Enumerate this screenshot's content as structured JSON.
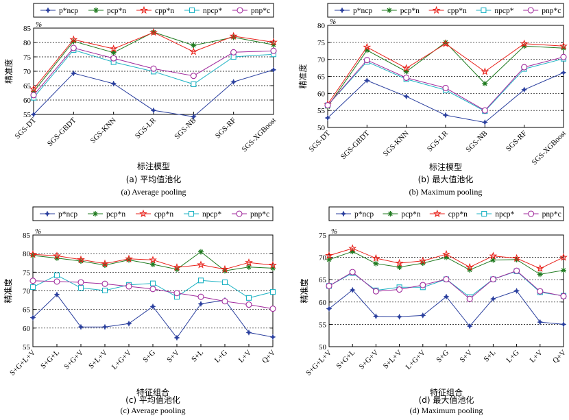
{
  "legend_labels": [
    "p*ncp",
    "pcp*n",
    "cpp*n",
    "npcp*",
    "pnp*c"
  ],
  "series_colors": [
    "#2a3f9e",
    "#1f7a1f",
    "#e8221b",
    "#1fb3c4",
    "#a02a9c"
  ],
  "chart_data": [
    {
      "type": "line",
      "y_unit": "%",
      "ylabel": "精准度",
      "xlabel": "标注模型",
      "caption_cn": "(a) 平均值池化",
      "caption_en": "(a) Average pooling",
      "categories": [
        "SGS-DT",
        "SGS-GBDT",
        "SGS-KNN",
        "SGS-LR",
        "SGS-NB",
        "SGS-RF",
        "SGS-XGBoost"
      ],
      "ylim": [
        55,
        85
      ],
      "yticks": [
        55,
        60,
        65,
        70,
        75,
        80,
        85
      ],
      "grid": true,
      "legend": "top",
      "series": [
        {
          "name": "p*ncp",
          "values": [
            55.0,
            69.3,
            65.7,
            56.4,
            54.2,
            66.3,
            70.5
          ]
        },
        {
          "name": "pcp*n",
          "values": [
            62.9,
            80.4,
            76.5,
            83.6,
            79.0,
            81.8,
            79.2
          ]
        },
        {
          "name": "cpp*n",
          "values": [
            63.8,
            81.0,
            77.8,
            83.5,
            76.8,
            82.2,
            80.1
          ]
        },
        {
          "name": "npcp*",
          "values": [
            60.8,
            77.4,
            73.2,
            69.9,
            65.5,
            75.0,
            75.9
          ]
        },
        {
          "name": "pnp*c",
          "values": [
            61.7,
            78.1,
            74.5,
            70.9,
            68.4,
            76.6,
            77.1
          ]
        }
      ]
    },
    {
      "type": "line",
      "y_unit": "%",
      "ylabel": "精准度",
      "xlabel": "标注模型",
      "caption_cn": "(b) 最大值池化",
      "caption_en": "(b) Maximum pooling",
      "categories": [
        "SGS-DT",
        "SGS-GBDT",
        "SGS-KNN",
        "SGS-LR",
        "SGS-NB",
        "SGS-RF",
        "SGS-XGBoost"
      ],
      "ylim": [
        50,
        80
      ],
      "yticks": [
        50,
        55,
        60,
        65,
        70,
        75,
        80
      ],
      "grid": true,
      "legend": "top",
      "series": [
        {
          "name": "p*ncp",
          "values": [
            52.8,
            63.8,
            59.1,
            53.6,
            51.5,
            61.1,
            66.1
          ]
        },
        {
          "name": "pcp*n",
          "values": [
            56.1,
            72.7,
            66.4,
            75.0,
            62.9,
            73.9,
            73.3
          ]
        },
        {
          "name": "cpp*n",
          "values": [
            56.8,
            73.6,
            67.4,
            74.6,
            66.4,
            74.6,
            73.9
          ]
        },
        {
          "name": "npcp*",
          "values": [
            56.5,
            69.3,
            64.2,
            61.0,
            54.8,
            67.2,
            70.2
          ]
        },
        {
          "name": "pnp*c",
          "values": [
            56.5,
            69.8,
            64.6,
            61.6,
            55.0,
            67.7,
            70.7
          ]
        }
      ]
    },
    {
      "type": "line",
      "y_unit": "%",
      "ylabel": "精准度",
      "xlabel": "特征组合",
      "caption_cn": "(c) 平均值池化",
      "caption_en": "(c) Average pooling",
      "categories": [
        "S+G+L+V",
        "S+G+L",
        "S+G+V",
        "S+L+V",
        "L+G+V",
        "S+G",
        "S+V",
        "S+L",
        "L+G",
        "L+V",
        "Q+V"
      ],
      "ylim": [
        55,
        85
      ],
      "yticks": [
        55,
        60,
        65,
        70,
        75,
        80,
        85
      ],
      "grid": true,
      "legend": "top",
      "series": [
        {
          "name": "p*ncp",
          "values": [
            62.8,
            69.0,
            60.3,
            60.3,
            61.2,
            65.8,
            57.4,
            66.5,
            67.5,
            58.8,
            57.6
          ]
        },
        {
          "name": "pcp*n",
          "values": [
            79.5,
            78.8,
            78.0,
            76.9,
            78.3,
            77.1,
            75.8,
            80.5,
            75.4,
            76.4,
            76.1
          ]
        },
        {
          "name": "cpp*n",
          "values": [
            79.8,
            79.4,
            78.4,
            77.3,
            78.6,
            78.3,
            76.3,
            77.0,
            75.8,
            77.6,
            76.9
          ]
        },
        {
          "name": "npcp*",
          "values": [
            71.0,
            74.2,
            70.8,
            70.1,
            71.6,
            72.0,
            68.4,
            72.8,
            72.3,
            68.1,
            69.7
          ]
        },
        {
          "name": "pnp*c",
          "values": [
            72.7,
            72.5,
            72.3,
            71.9,
            71.2,
            70.5,
            69.4,
            68.4,
            67.2,
            66.3,
            65.2
          ]
        }
      ]
    },
    {
      "type": "line",
      "y_unit": "%",
      "ylabel": "精准度",
      "xlabel": "特征组合",
      "caption_cn": "(d) 最大值池化",
      "caption_en": "(d) Maximum pooling",
      "categories": [
        "S+G+L+V",
        "S+G+L",
        "S+G+V",
        "S+L+V",
        "L+G+V",
        "S+G",
        "S+V",
        "S+L",
        "L+G",
        "L+V",
        "Q+V"
      ],
      "ylim": [
        50,
        75
      ],
      "yticks": [
        50,
        55,
        60,
        65,
        70,
        75
      ],
      "grid": true,
      "legend": "top",
      "series": [
        {
          "name": "p*ncp",
          "values": [
            58.5,
            62.7,
            56.8,
            56.7,
            57.0,
            61.2,
            54.6,
            60.7,
            62.5,
            55.5,
            55.0
          ]
        },
        {
          "name": "pcp*n",
          "values": [
            69.5,
            71.3,
            68.6,
            67.8,
            68.7,
            70.0,
            67.2,
            69.4,
            69.5,
            66.2,
            67.1
          ]
        },
        {
          "name": "cpp*n",
          "values": [
            70.4,
            72.0,
            69.8,
            68.7,
            69.2,
            70.7,
            67.8,
            70.3,
            69.8,
            67.5,
            70.0
          ]
        },
        {
          "name": "npcp*",
          "values": [
            63.6,
            66.5,
            62.6,
            63.3,
            63.3,
            65.1,
            61.1,
            65.1,
            66.9,
            62.2,
            61.4
          ]
        },
        {
          "name": "pnp*c",
          "values": [
            63.6,
            66.7,
            62.4,
            62.8,
            63.8,
            65.1,
            60.7,
            65.1,
            67.0,
            62.4,
            61.3
          ]
        }
      ]
    }
  ]
}
